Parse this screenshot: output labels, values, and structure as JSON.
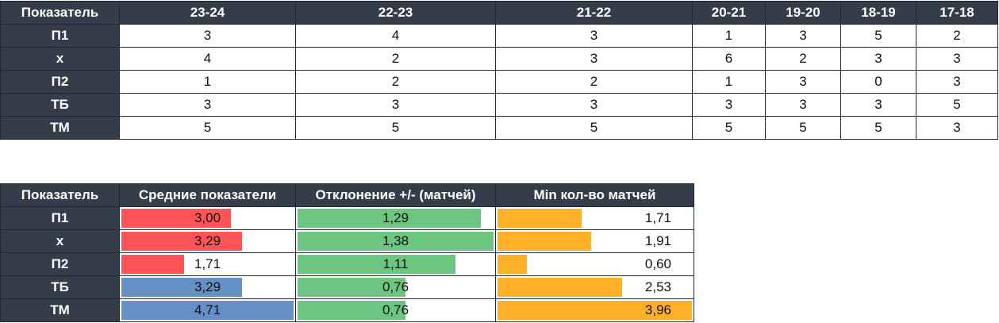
{
  "table1": {
    "columns": [
      "Показатель",
      "23-24",
      "22-23",
      "21-22",
      "20-21",
      "19-20",
      "18-19",
      "17-18"
    ],
    "rows": [
      {
        "label": "П1",
        "values": [
          "3",
          "4",
          "3",
          "1",
          "3",
          "5",
          "2"
        ]
      },
      {
        "label": "х",
        "values": [
          "4",
          "2",
          "3",
          "6",
          "2",
          "3",
          "3"
        ]
      },
      {
        "label": "П2",
        "values": [
          "1",
          "2",
          "2",
          "1",
          "3",
          "0",
          "3"
        ]
      },
      {
        "label": "ТБ",
        "values": [
          "3",
          "3",
          "3",
          "3",
          "3",
          "3",
          "5"
        ]
      },
      {
        "label": "ТМ",
        "values": [
          "5",
          "5",
          "5",
          "5",
          "5",
          "5",
          "3"
        ]
      }
    ]
  },
  "table2": {
    "columns": [
      "Показатель",
      "Средние показатели",
      "Отклонение +/- (матчей)",
      "Min кол-во матчей"
    ],
    "colors": {
      "red": "#fe5457",
      "blue": "#6590c7",
      "green": "#6cc681",
      "orange": "#feb128"
    },
    "rows": [
      {
        "label": "П1",
        "avg": "3,00",
        "dev": "1,29",
        "min": "1,71"
      },
      {
        "label": "х",
        "avg": "3,29",
        "dev": "1,38",
        "min": "1,91"
      },
      {
        "label": "П2",
        "avg": "1,71",
        "dev": "1,11",
        "min": "0,60"
      },
      {
        "label": "ТБ",
        "avg": "3,29",
        "dev": "0,76",
        "min": "2,53"
      },
      {
        "label": "ТМ",
        "avg": "4,71",
        "dev": "0,76",
        "min": "3,96"
      }
    ]
  }
}
